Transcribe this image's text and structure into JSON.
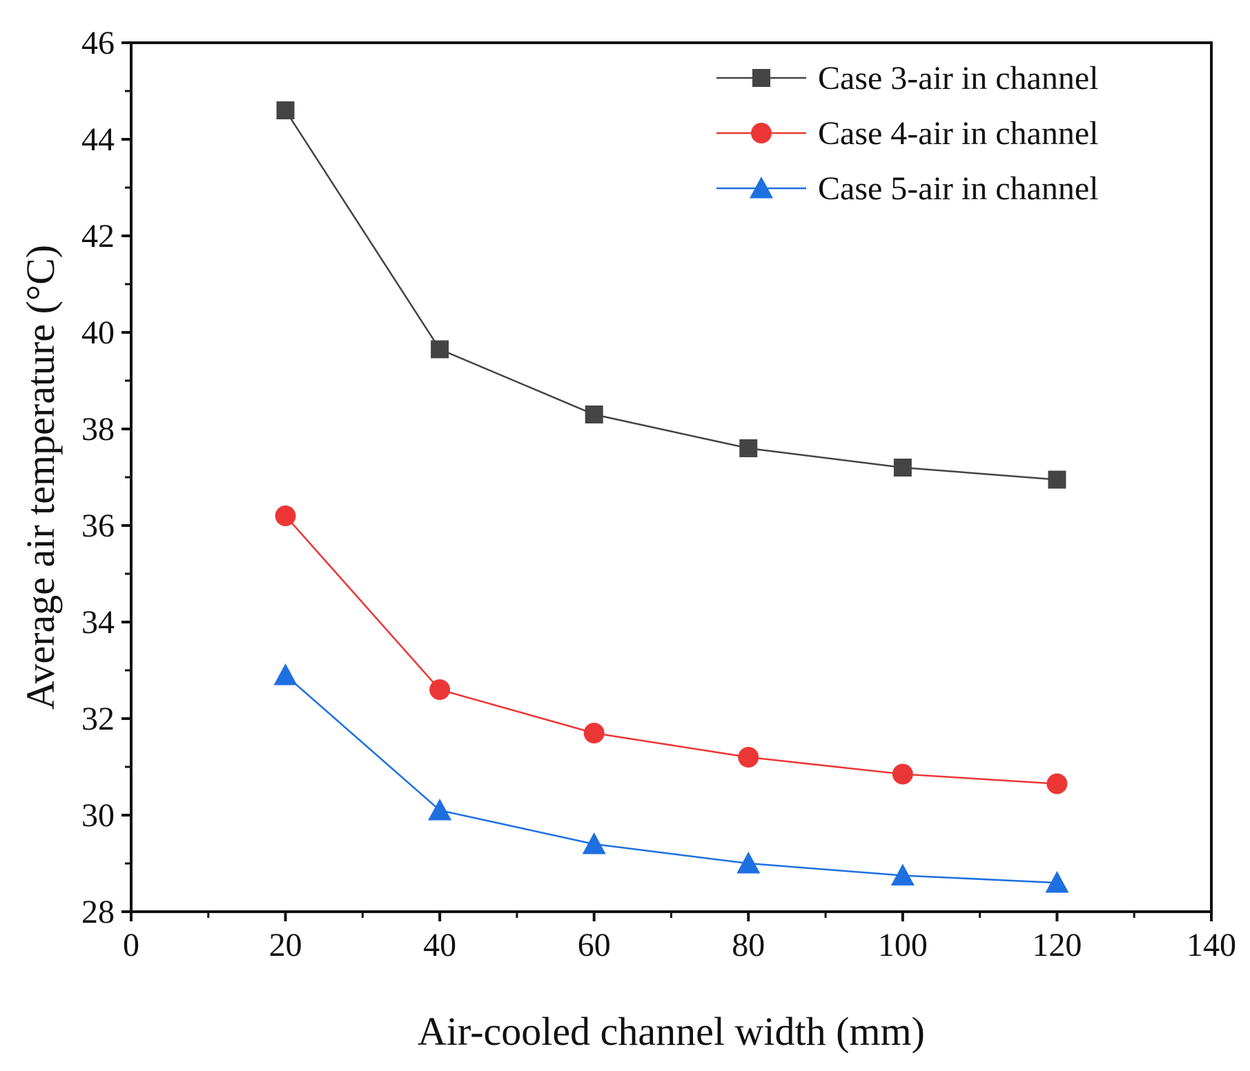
{
  "chart_data": {
    "type": "line",
    "title": "",
    "xlabel": "Air-cooled channel width (mm)",
    "ylabel": "Average air temperature (°C)",
    "xlim": [
      0,
      140
    ],
    "ylim": [
      28,
      46
    ],
    "xticks": [
      0,
      20,
      40,
      60,
      80,
      100,
      120,
      140
    ],
    "yticks": [
      28,
      30,
      32,
      34,
      36,
      38,
      40,
      42,
      44,
      46
    ],
    "grid": false,
    "legend_position": "top-right",
    "x": [
      20,
      40,
      60,
      80,
      100,
      120
    ],
    "series": [
      {
        "name": "Case 3-air in channel",
        "color": "#444444",
        "marker": "square",
        "values": [
          44.6,
          39.65,
          38.3,
          37.6,
          37.2,
          36.95
        ]
      },
      {
        "name": "Case 4-air in channel",
        "color": "#ec3636",
        "marker": "circle",
        "values": [
          36.2,
          32.6,
          31.7,
          31.2,
          30.85,
          30.65
        ]
      },
      {
        "name": "Case 5-air in channel",
        "color": "#1e6fe0",
        "marker": "triangle",
        "values": [
          32.9,
          30.1,
          29.4,
          29.0,
          28.75,
          28.6
        ]
      }
    ]
  }
}
